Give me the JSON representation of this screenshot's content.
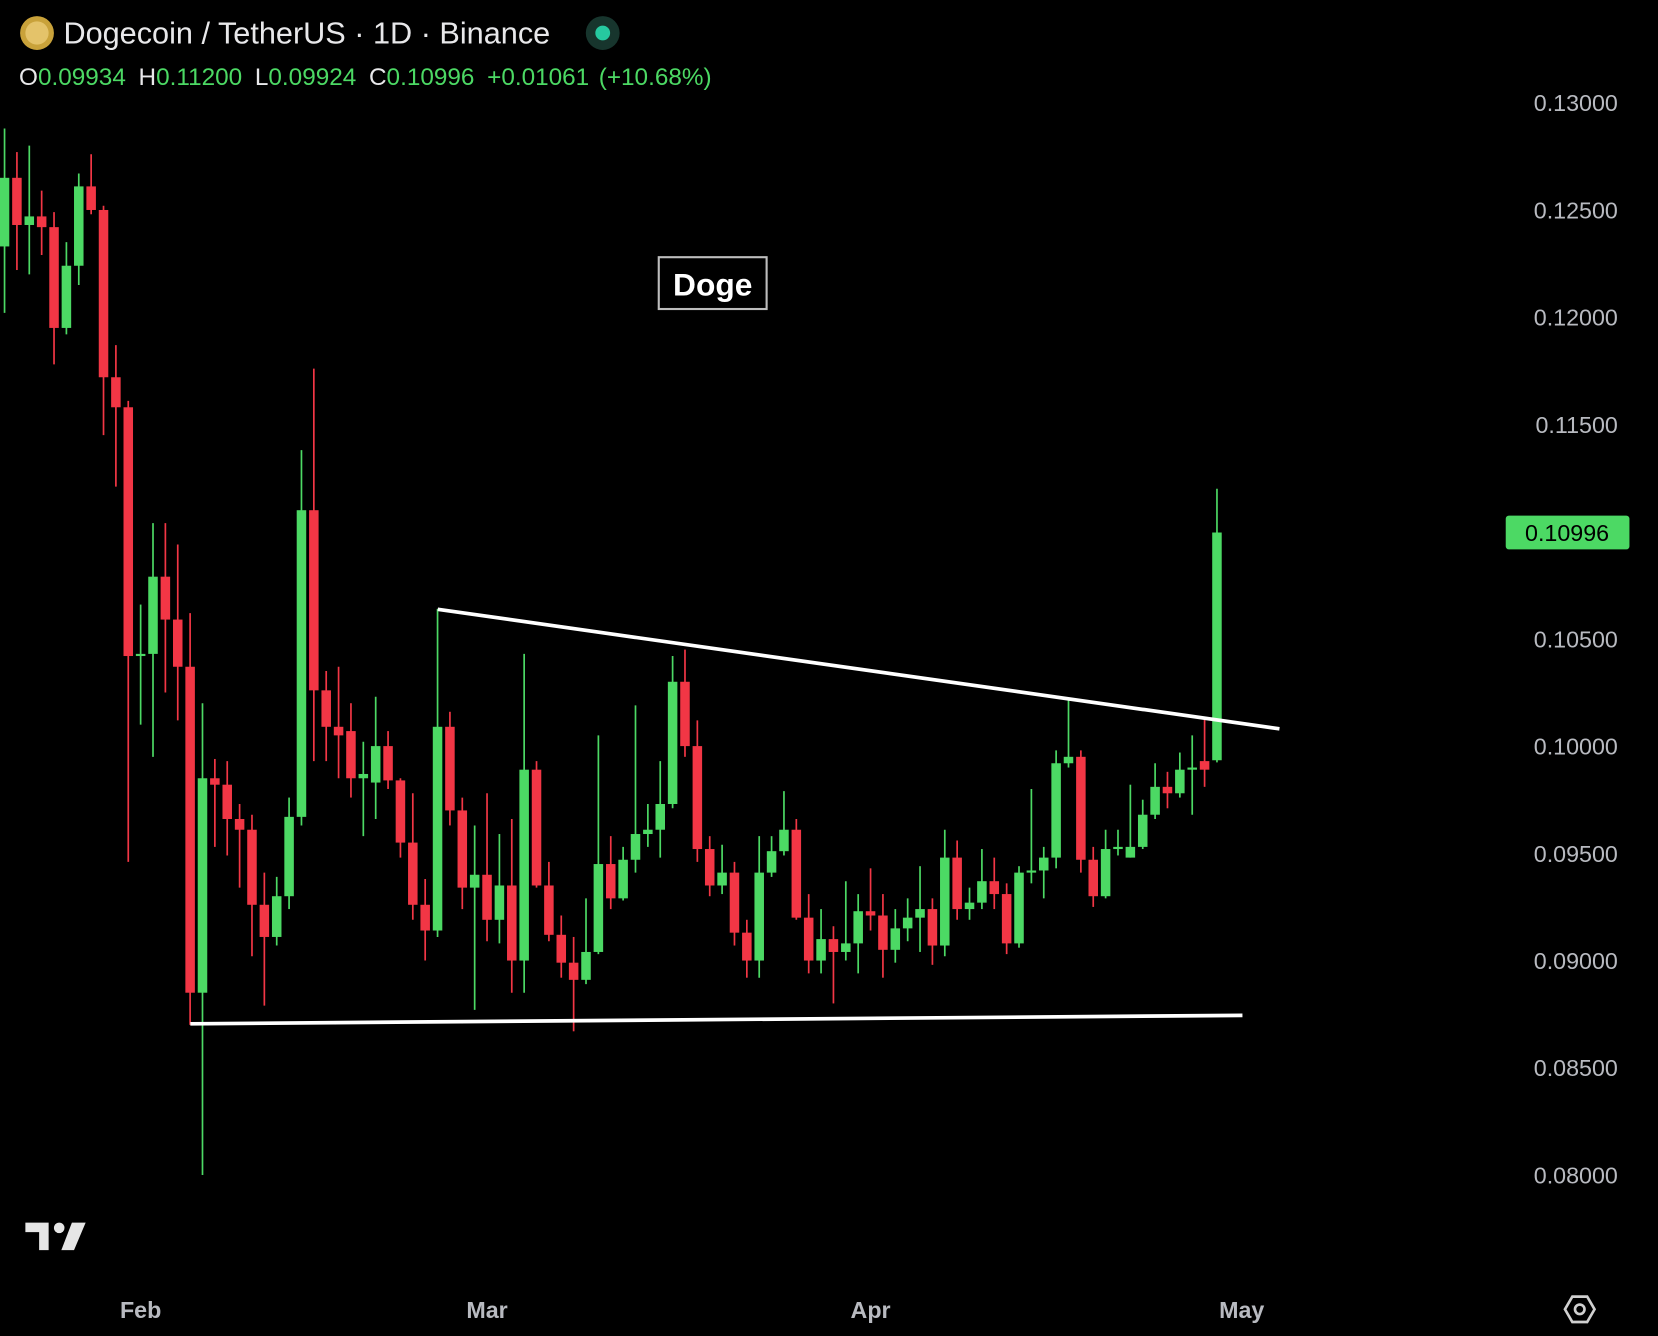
{
  "chart_data": {
    "type": "candlestick",
    "title": "Dogecoin / TetherUS · 1D · Binance",
    "ohlc": [
      {
        "label": "O",
        "value": "0.09934"
      },
      {
        "label": "H",
        "value": "0.11200"
      },
      {
        "label": "L",
        "value": "0.09924"
      },
      {
        "label": "C",
        "value": "0.10996"
      }
    ],
    "change": "+0.01061",
    "change_pct": "(+10.68%)",
    "annotation": "Doge",
    "up_color": "#4cd964",
    "down_color": "#f23645",
    "grid": false,
    "ylim": [
      0.07561,
      0.13478
    ],
    "yticks": [
      {
        "value": 0.13,
        "label": "0.13000"
      },
      {
        "value": 0.125,
        "label": "0.12500"
      },
      {
        "value": 0.12,
        "label": "0.12000"
      },
      {
        "value": 0.115,
        "label": "0.11500"
      },
      {
        "value": 0.11,
        "label": "0.11000"
      },
      {
        "value": 0.105,
        "label": "0.10500"
      },
      {
        "value": 0.1,
        "label": "0.10000"
      },
      {
        "value": 0.095,
        "label": "0.09500"
      },
      {
        "value": 0.09,
        "label": "0.09000"
      },
      {
        "value": 0.085,
        "label": "0.08500"
      },
      {
        "value": 0.08,
        "label": "0.08000"
      }
    ],
    "categories": [
      null,
      null,
      null,
      null,
      null,
      null,
      null,
      null,
      null,
      null,
      null,
      "Feb",
      null,
      null,
      null,
      null,
      null,
      null,
      null,
      null,
      null,
      null,
      null,
      null,
      null,
      null,
      null,
      null,
      null,
      null,
      null,
      null,
      null,
      null,
      null,
      null,
      null,
      null,
      null,
      "Mar",
      null,
      null,
      null,
      null,
      null,
      null,
      null,
      null,
      null,
      null,
      null,
      null,
      null,
      null,
      null,
      null,
      null,
      null,
      null,
      null,
      null,
      null,
      null,
      null,
      null,
      null,
      null,
      null,
      null,
      null,
      "Apr",
      null,
      null,
      null,
      null,
      null,
      null,
      null,
      null,
      null,
      null,
      null,
      null,
      null,
      null,
      null,
      null,
      null,
      null,
      null,
      null,
      null,
      null,
      null,
      null,
      null,
      null,
      null,
      null,
      null,
      "May"
    ],
    "open": [
      0.1233,
      0.1265,
      0.1243,
      0.1247,
      0.1242,
      0.1195,
      0.1224,
      0.1261,
      0.125,
      0.1172,
      0.1158,
      0.1042,
      0.1043,
      0.1079,
      0.1059,
      0.1037,
      0.0885,
      0.0985,
      0.0982,
      0.0966,
      0.0961,
      0.0926,
      0.0911,
      0.093,
      0.0967,
      0.111,
      0.1026,
      0.1009,
      0.1007,
      0.0985,
      0.0983,
      0.1,
      0.0984,
      0.0955,
      0.0926,
      0.0914,
      0.1009,
      0.097,
      0.0934,
      0.094,
      0.0919,
      0.0935,
      0.09,
      0.0989,
      0.0935,
      0.0912,
      0.0899,
      0.0891,
      0.0904,
      0.0945,
      0.0929,
      0.0947,
      0.0959,
      0.0961,
      0.0973,
      0.103,
      0.1,
      0.0952,
      0.0935,
      0.0941,
      0.0913,
      0.09,
      0.0941,
      0.0951,
      0.0961,
      0.092,
      0.09,
      0.091,
      0.0904,
      0.0908,
      0.0923,
      0.0921,
      0.0905,
      0.0915,
      0.092,
      0.0924,
      0.0907,
      0.0948,
      0.0924,
      0.0927,
      0.0937,
      0.0931,
      0.0908,
      0.0941,
      0.0942,
      0.0948,
      0.0992,
      0.0995,
      0.0947,
      0.093,
      0.0952,
      0.0948,
      0.0953,
      0.0968,
      0.0981,
      0.0978,
      0.0989,
      0.0993,
      0.09934,
      null,
      null
    ],
    "high": [
      0.1288,
      0.1277,
      0.128,
      0.1259,
      0.1249,
      0.1235,
      0.1267,
      0.1276,
      0.1252,
      0.1187,
      0.1161,
      0.1066,
      0.1104,
      0.1104,
      0.1094,
      0.1062,
      0.102,
      0.0994,
      0.0993,
      0.0973,
      0.0968,
      0.0941,
      0.0939,
      0.0976,
      0.1138,
      0.1176,
      0.1035,
      0.1037,
      0.102,
      0.1002,
      0.1023,
      0.1007,
      0.0985,
      0.0978,
      0.0938,
      0.1064,
      0.1016,
      0.0976,
      0.0963,
      0.0978,
      0.0959,
      0.0966,
      0.1043,
      0.0993,
      0.0946,
      0.0921,
      0.0911,
      0.0929,
      0.1005,
      0.0958,
      0.0953,
      0.1019,
      0.0973,
      0.0993,
      0.1042,
      0.1045,
      0.1012,
      0.0958,
      0.0954,
      0.0946,
      0.0919,
      0.0958,
      0.0958,
      0.0979,
      0.0966,
      0.0931,
      0.0924,
      0.0916,
      0.0937,
      0.0931,
      0.0943,
      0.0931,
      0.0924,
      0.0929,
      0.0944,
      0.0929,
      0.0961,
      0.0956,
      0.0934,
      0.0952,
      0.0948,
      0.0936,
      0.0944,
      0.098,
      0.0953,
      0.0998,
      0.1022,
      0.0998,
      0.0953,
      0.0961,
      0.0961,
      0.0982,
      0.0975,
      0.0992,
      0.0988,
      0.0997,
      0.1005,
      0.1013,
      0.112,
      null,
      null
    ],
    "low": [
      0.1202,
      0.1222,
      0.122,
      0.1229,
      0.1178,
      0.1192,
      0.1215,
      0.1248,
      0.1145,
      0.1121,
      0.0946,
      0.101,
      0.0995,
      0.1025,
      0.1012,
      0.087,
      0.08,
      0.0953,
      0.0949,
      0.0934,
      0.0902,
      0.0879,
      0.0907,
      0.0924,
      0.0963,
      0.0993,
      0.0993,
      0.0985,
      0.0976,
      0.0958,
      0.0966,
      0.098,
      0.0948,
      0.0919,
      0.09,
      0.0911,
      0.0963,
      0.0924,
      0.0877,
      0.0909,
      0.0908,
      0.0885,
      0.0885,
      0.0934,
      0.0909,
      0.0892,
      0.0867,
      0.0889,
      0.0903,
      0.0924,
      0.0928,
      0.0941,
      0.0953,
      0.0948,
      0.0971,
      0.0995,
      0.0946,
      0.093,
      0.0931,
      0.0907,
      0.0892,
      0.0892,
      0.0939,
      0.0949,
      0.0919,
      0.0894,
      0.0894,
      0.088,
      0.09,
      0.0894,
      0.0914,
      0.0892,
      0.0899,
      0.0909,
      0.0904,
      0.0898,
      0.0902,
      0.0919,
      0.0919,
      0.0924,
      0.0924,
      0.0903,
      0.0906,
      0.0936,
      0.0929,
      0.0943,
      0.099,
      0.0941,
      0.0925,
      0.0929,
      0.0949,
      0.0948,
      0.0952,
      0.0966,
      0.0971,
      0.0976,
      0.0968,
      0.0981,
      0.09924,
      null,
      null
    ],
    "close": [
      0.1265,
      0.1243,
      0.1247,
      0.1242,
      0.1195,
      0.1224,
      0.1261,
      0.125,
      0.1172,
      0.1158,
      0.1042,
      0.1043,
      0.1079,
      0.1059,
      0.1037,
      0.0885,
      0.0985,
      0.0982,
      0.0966,
      0.0961,
      0.0926,
      0.0911,
      0.093,
      0.0967,
      0.111,
      0.1026,
      0.1009,
      0.1005,
      0.0985,
      0.0987,
      0.1,
      0.0984,
      0.0955,
      0.0926,
      0.0914,
      0.1009,
      0.097,
      0.0934,
      0.094,
      0.0919,
      0.0935,
      0.09,
      0.0989,
      0.0935,
      0.0912,
      0.0899,
      0.0891,
      0.0904,
      0.0945,
      0.0929,
      0.0947,
      0.0959,
      0.0961,
      0.0973,
      0.103,
      0.1,
      0.0952,
      0.0935,
      0.0941,
      0.0913,
      0.09,
      0.0941,
      0.0951,
      0.0961,
      0.092,
      0.09,
      0.091,
      0.0904,
      0.0908,
      0.0923,
      0.0921,
      0.0905,
      0.0915,
      0.092,
      0.0924,
      0.0907,
      0.0948,
      0.0924,
      0.0927,
      0.0937,
      0.0931,
      0.0908,
      0.0941,
      0.0942,
      0.0948,
      0.0992,
      0.0995,
      0.0947,
      0.093,
      0.0952,
      0.0953,
      0.0953,
      0.0968,
      0.0981,
      0.0978,
      0.0989,
      0.099,
      0.0989,
      0.10996,
      null,
      null
    ]
  }
}
